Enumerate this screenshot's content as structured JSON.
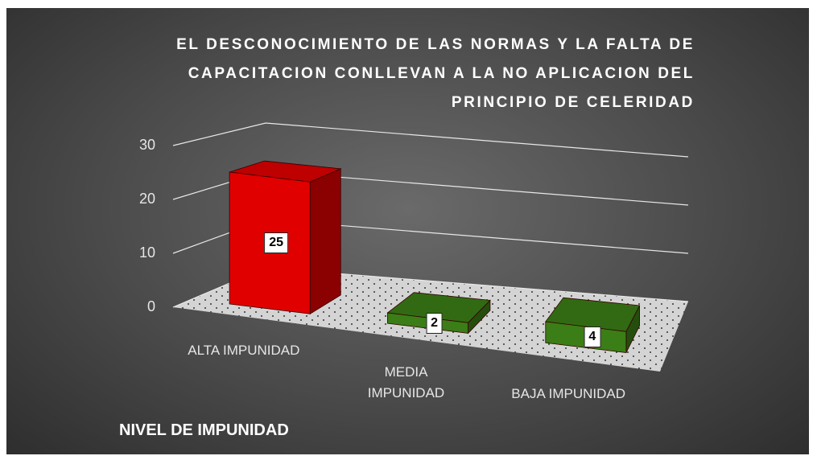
{
  "chart_data": {
    "type": "bar3d",
    "title": "EL DESCONOCIMIENTO DE LAS NORMAS Y LA FALTA DE CAPACITACION CONLLEVAN A LA NO APLICACION DEL PRINCIPIO DE CELERIDAD",
    "x_label": "NIVEL DE IMPUNIDAD",
    "categories": [
      "ALTA IMPUNIDAD",
      "MEDIA IMPUNIDAD",
      "BAJA IMPUNIDAD"
    ],
    "values": [
      25,
      2,
      4
    ],
    "colors": [
      "#e00000",
      "#3b7d16",
      "#3b7d16"
    ],
    "ylim": [
      0,
      30
    ],
    "yticks": [
      0,
      10,
      20,
      30
    ],
    "grid": true
  }
}
